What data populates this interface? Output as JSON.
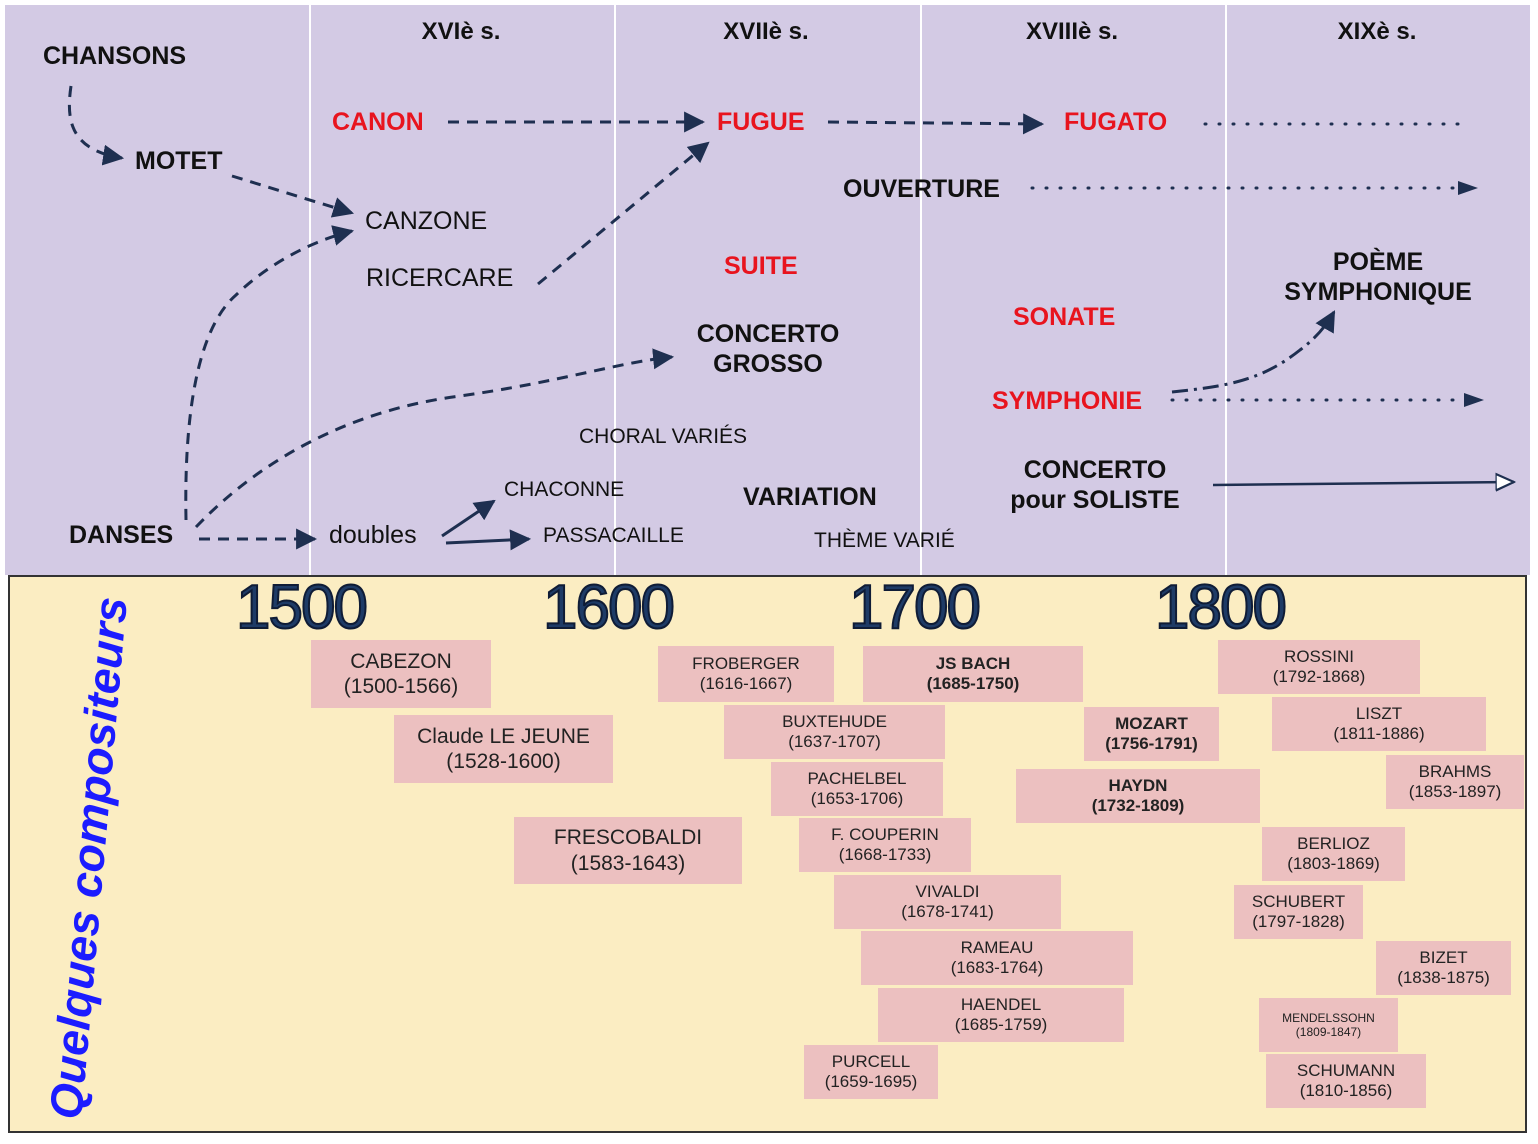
{
  "centuries": [
    "XVIè s.",
    "XVIIè s.",
    "XVIIIè s.",
    "XIXè s."
  ],
  "forms": {
    "chansons": "CHANSONS",
    "motet": "MOTET",
    "canzone": "CANZONE",
    "ricercare": "RICERCARE",
    "canon": "CANON",
    "fugue": "FUGUE",
    "fugato": "FUGATO",
    "ouverture": "OUVERTURE",
    "suite": "SUITE",
    "sonate": "SONATE",
    "poeme_1": "POÈME",
    "poeme_2": "SYMPHONIQUE",
    "concerto_grosso_1": "CONCERTO",
    "concerto_grosso_2": "GROSSO",
    "symphonie": "SYMPHONIE",
    "choral_varies": "CHORAL VARIÉS",
    "chaconne": "CHACONNE",
    "variation": "VARIATION",
    "concerto_soliste_1": "CONCERTO",
    "concerto_soliste_2": "pour SOLISTE",
    "danses": "DANSES",
    "doubles": "doubles",
    "passacaille": "PASSACAILLE",
    "theme_varie": "THÈME VARIÉ"
  },
  "composers_title": "Quelques compositeurs",
  "years": [
    "1500",
    "1600",
    "1700",
    "1800"
  ],
  "composers": [
    {
      "name": "CABEZON",
      "dates": "(1500-1566)"
    },
    {
      "name": "Claude LE JEUNE",
      "dates": "(1528-1600)"
    },
    {
      "name": "FRESCOBALDI",
      "dates": "(1583-1643)"
    },
    {
      "name": "FROBERGER",
      "dates": "(1616-1667)"
    },
    {
      "name": "BUXTEHUDE",
      "dates": "(1637-1707)"
    },
    {
      "name": "PACHELBEL",
      "dates": "(1653-1706)"
    },
    {
      "name": "F. COUPERIN",
      "dates": "(1668-1733)"
    },
    {
      "name": "VIVALDI",
      "dates": "(1678-1741)"
    },
    {
      "name": "RAMEAU",
      "dates": "(1683-1764)"
    },
    {
      "name": "HAENDEL",
      "dates": "(1685-1759)"
    },
    {
      "name": "PURCELL",
      "dates": "(1659-1695)"
    },
    {
      "name": "JS BACH",
      "dates": "(1685-1750)"
    },
    {
      "name": "MOZART",
      "dates": "(1756-1791)"
    },
    {
      "name": "HAYDN",
      "dates": "(1732-1809)"
    },
    {
      "name": "ROSSINI",
      "dates": "(1792-1868)"
    },
    {
      "name": "LISZT",
      "dates": "(1811-1886)"
    },
    {
      "name": "BRAHMS",
      "dates": "(1853-1897)"
    },
    {
      "name": "BERLIOZ",
      "dates": "(1803-1869)"
    },
    {
      "name": "SCHUBERT",
      "dates": "(1797-1828)"
    },
    {
      "name": "BIZET",
      "dates": "(1838-1875)"
    },
    {
      "name": "MENDELSSOHN",
      "dates": "(1809-1847)"
    },
    {
      "name": "SCHUMANN",
      "dates": "(1810-1856)"
    }
  ],
  "colors": {
    "panel_top": "#d3cae4",
    "panel_bottom": "#fbedc2",
    "red_form": "#e8141e",
    "composer_box": "#ecc0c0",
    "arrow": "#1e2f50",
    "title_blue": "#1c1cff"
  }
}
